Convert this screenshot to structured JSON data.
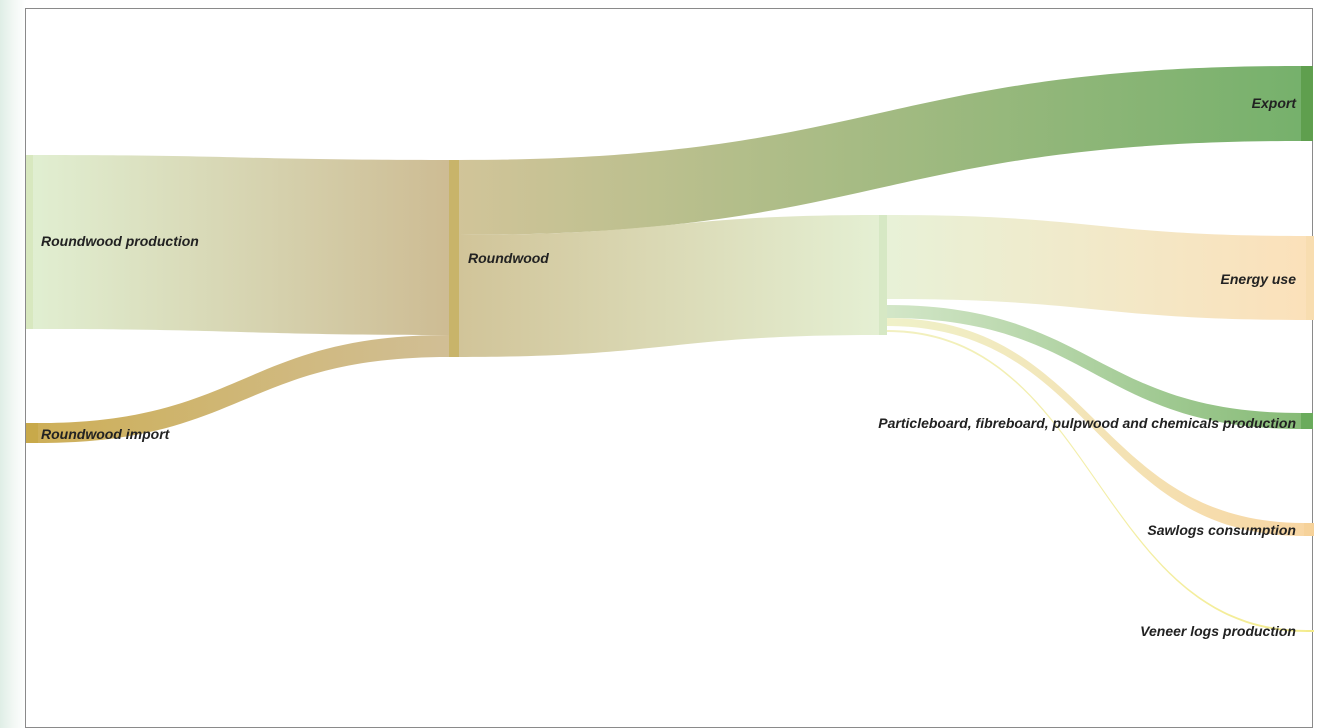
{
  "diagram": {
    "type": "sankey",
    "nodes": [
      {
        "id": "production",
        "label": "Roundwood production",
        "color": "#d8e8bf"
      },
      {
        "id": "import",
        "label": "Roundwood import",
        "color": "#c8a94a"
      },
      {
        "id": "roundwood",
        "label": "Roundwood",
        "color": "#c8b46a"
      },
      {
        "id": "hub",
        "label": "",
        "color": "#d6e8c4"
      },
      {
        "id": "export",
        "label": "Export",
        "color": "#5f9f4e"
      },
      {
        "id": "energy",
        "label": "Energy use",
        "color": "#f8ddb0"
      },
      {
        "id": "particle",
        "label": "Particleboard, fibreboard, pulpwood and chemicals production",
        "color": "#6aab5c"
      },
      {
        "id": "sawlogs",
        "label": "Sawlogs consumption",
        "color": "#f6d29a"
      },
      {
        "id": "veneer",
        "label": "Veneer logs production",
        "color": "#f3eb8c"
      }
    ],
    "links": [
      {
        "source": "production",
        "target": "roundwood",
        "from_color": "#deedcd",
        "to_color": "#c9b68a"
      },
      {
        "source": "import",
        "target": "roundwood",
        "from_color": "#c9a84a",
        "to_color": "#cdb98c"
      },
      {
        "source": "roundwood",
        "target": "export",
        "from_color": "#cdbf90",
        "to_color": "#6aaa5f"
      },
      {
        "source": "roundwood",
        "target": "hub",
        "from_color": "#cdbf90",
        "to_color": "#e2eecf"
      },
      {
        "source": "hub",
        "target": "energy",
        "from_color": "#e6f0d4",
        "to_color": "#fbdeb4"
      },
      {
        "source": "hub",
        "target": "particle",
        "from_color": "#cfe4c3",
        "to_color": "#7cb56b"
      },
      {
        "source": "hub",
        "target": "sawlogs",
        "from_color": "#eef0c4",
        "to_color": "#f7d39c"
      },
      {
        "source": "hub",
        "target": "veneer",
        "from_color": "#f1efbc",
        "to_color": "#f3eb86"
      }
    ]
  }
}
